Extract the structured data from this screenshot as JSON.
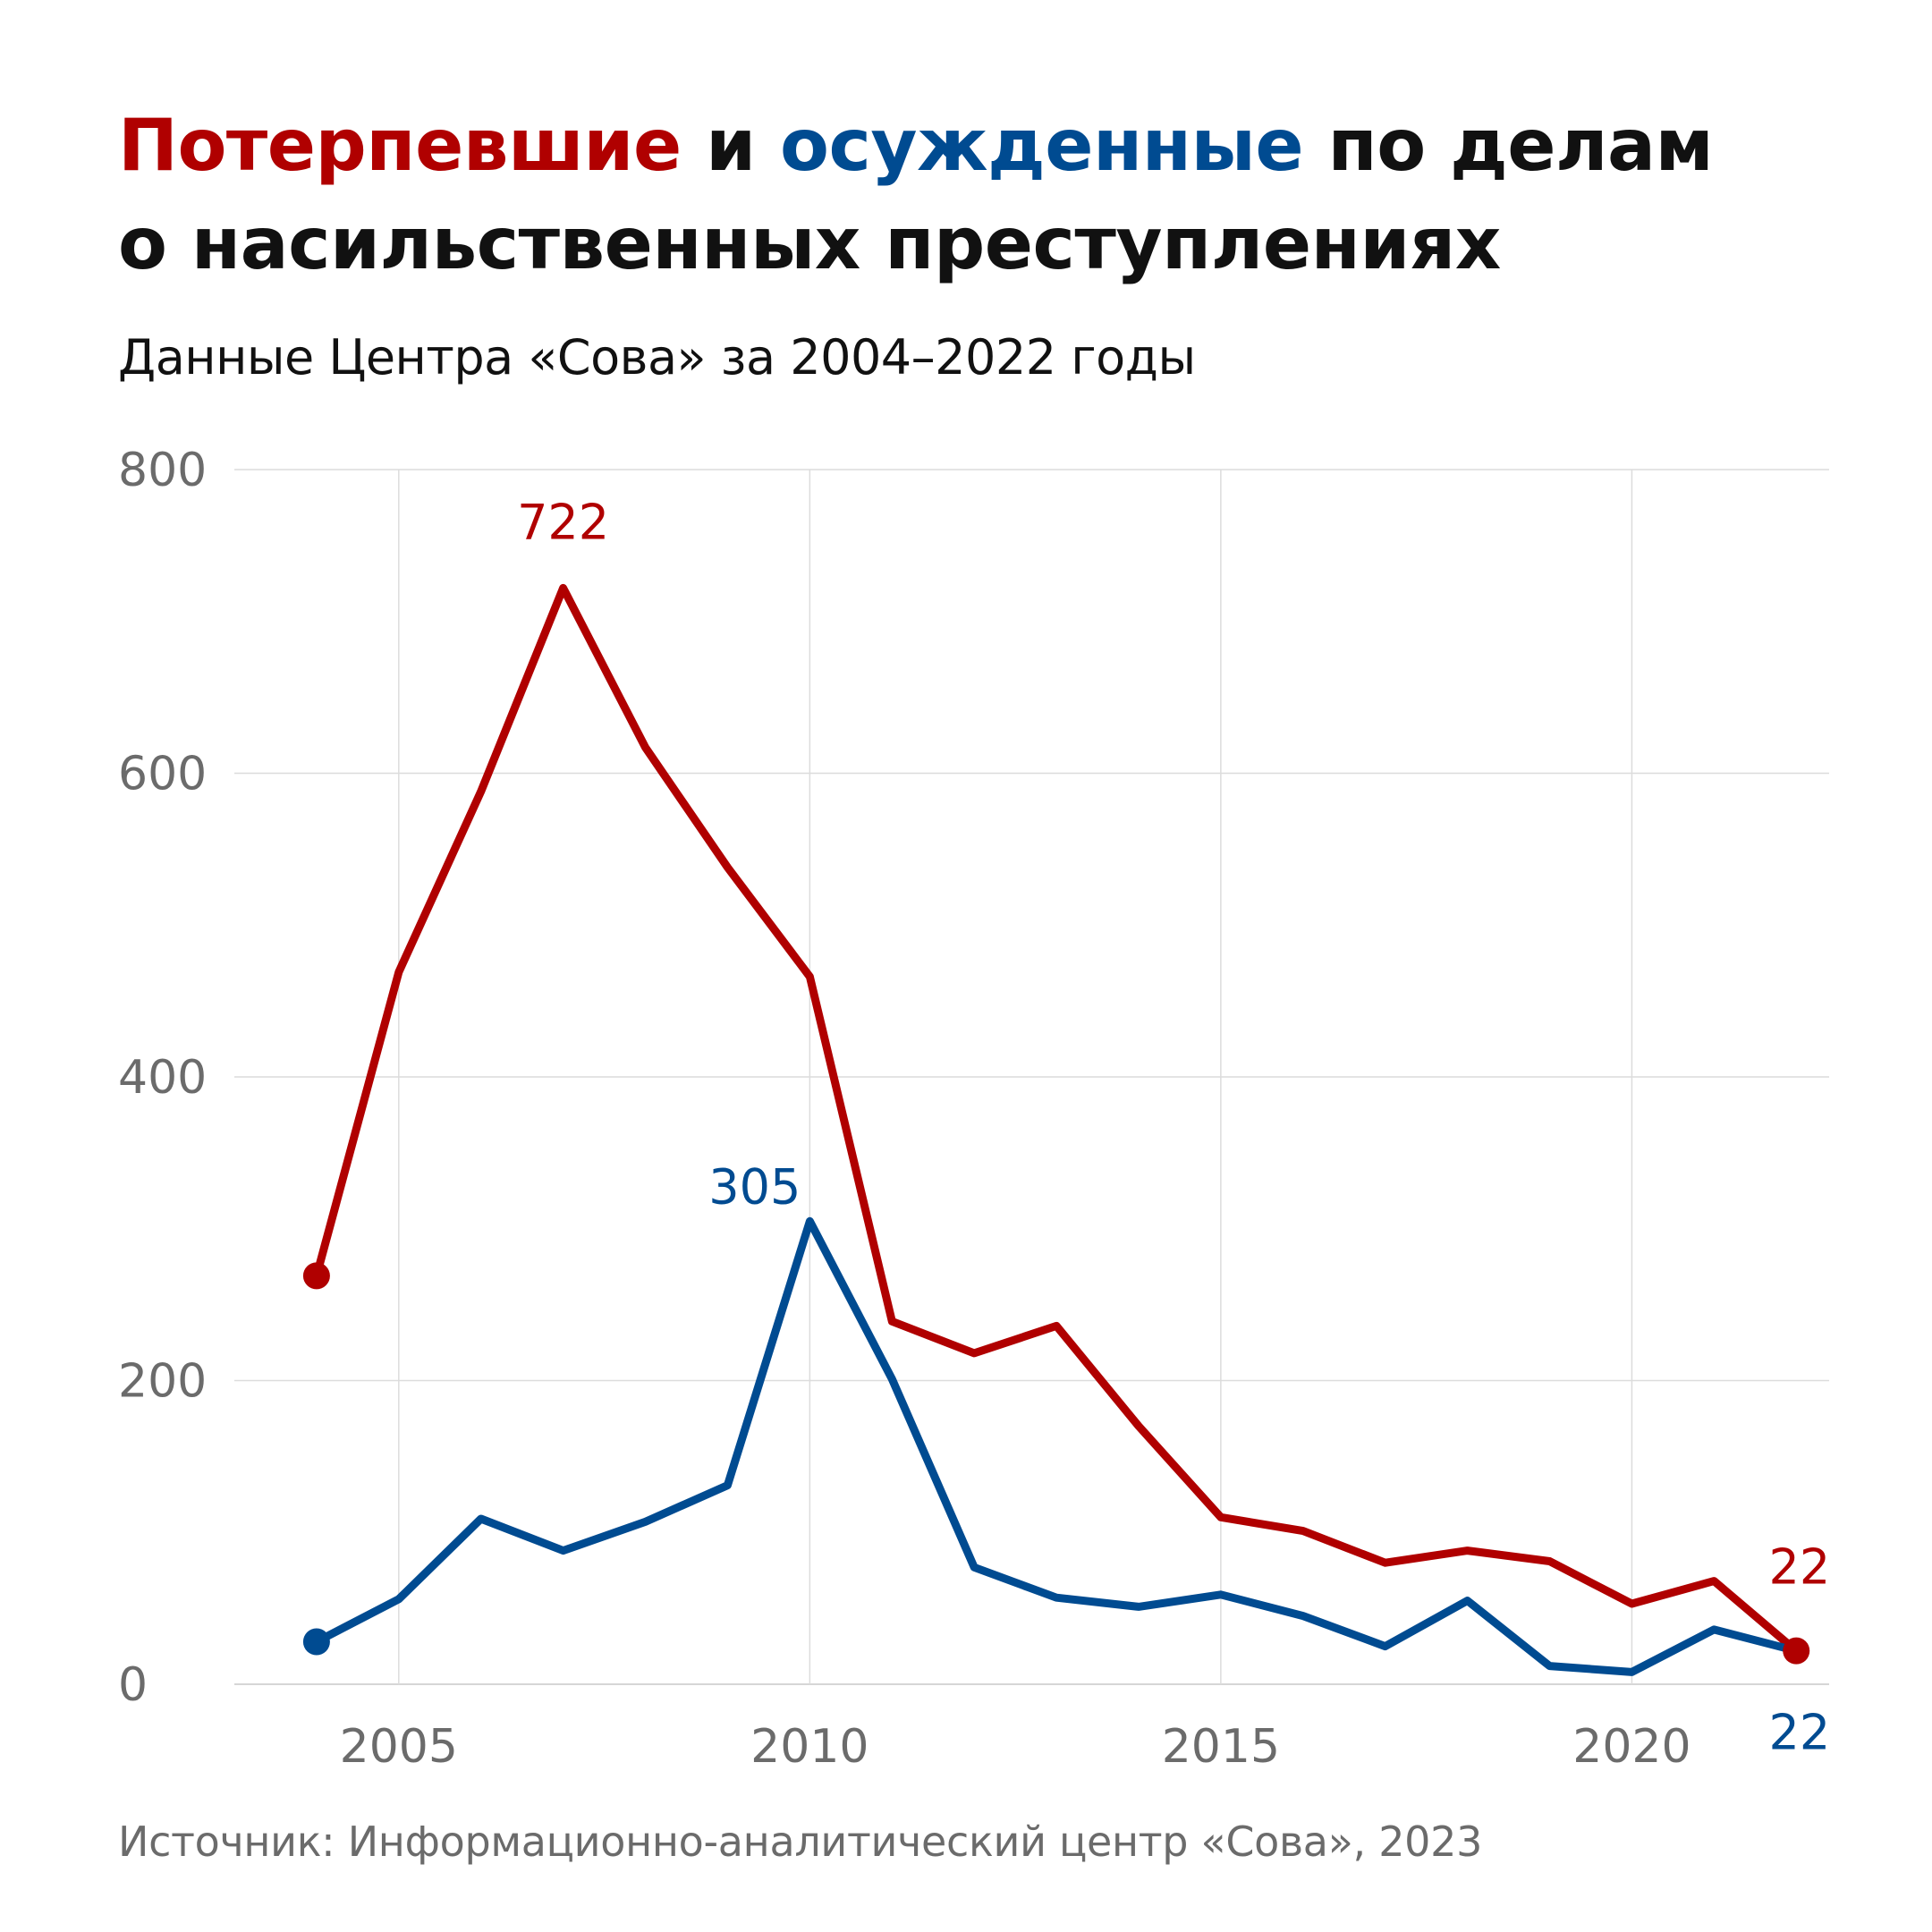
{
  "header": {
    "title_red": "Потерпевшие",
    "title_mid": " и ",
    "title_blue": "осужденные",
    "title_rest_line1": " по делам",
    "title_line2": "о насильственных преступлениях",
    "subtitle": "Данные Центра «Сова» за 2004–2022 годы"
  },
  "footer": {
    "source": "Источник: Информационно-аналитический центр «Сова», 2023"
  },
  "colors": {
    "victims": "#b00000",
    "convicted": "#004b91",
    "grid": "#dcdcdc",
    "tick_text": "#6b6b6b"
  },
  "chart_data": {
    "type": "line",
    "x": [
      2004,
      2005,
      2006,
      2007,
      2008,
      2009,
      2010,
      2011,
      2012,
      2013,
      2014,
      2015,
      2016,
      2017,
      2018,
      2019,
      2020,
      2021,
      2022
    ],
    "series": [
      {
        "key": "victims",
        "color": "#b00000",
        "values": [
          269,
          469,
          588,
          722,
          617,
          538,
          466,
          239,
          218,
          236,
          170,
          110,
          101,
          80,
          88,
          81,
          53,
          68,
          22
        ]
      },
      {
        "key": "convicted",
        "color": "#004b91",
        "values": [
          28,
          56,
          109,
          88,
          107,
          131,
          305,
          201,
          77,
          57,
          51,
          59,
          45,
          25,
          55,
          12,
          8,
          36,
          22
        ]
      }
    ],
    "annotations": [
      {
        "series": "victims",
        "x": 2007,
        "text": "722"
      },
      {
        "series": "convicted",
        "x": 2010,
        "text": "305"
      },
      {
        "series": "victims",
        "x": 2022,
        "text": "22"
      },
      {
        "series": "convicted",
        "x": 2022,
        "text": "22"
      }
    ],
    "xlim": [
      2003,
      2022.4
    ],
    "ylim": [
      0,
      800
    ],
    "xticks": [
      "2005",
      "2010",
      "2015",
      "2020"
    ],
    "yticks": [
      "0",
      "200",
      "400",
      "600",
      "800"
    ],
    "grid": true,
    "legend": "none (series named in title colors)"
  }
}
